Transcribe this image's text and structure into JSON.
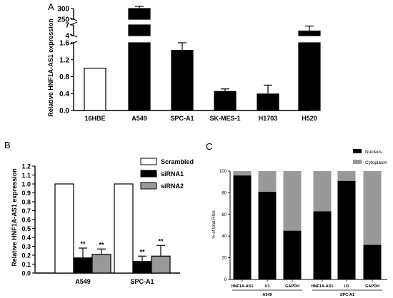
{
  "chart_data": [
    {
      "panel": "A",
      "type": "bar",
      "ylabel": "Relative HNF1A-AS1 expression",
      "categories": [
        "16HBE",
        "A549",
        "SPC-A1",
        "SK-MES-1",
        "H1703",
        "H520"
      ],
      "values": [
        1.0,
        300,
        1.42,
        0.45,
        0.39,
        5.3
      ],
      "errors": [
        0,
        30,
        0.18,
        0.06,
        0.21,
        1.4
      ],
      "bar_fill": [
        "white",
        "black",
        "black",
        "black",
        "black",
        "black"
      ],
      "broken_axis": true,
      "segments": [
        {
          "range": [
            0,
            1.6
          ],
          "ticks": [
            0.0,
            0.4,
            0.8,
            1.2,
            1.6
          ]
        },
        {
          "range": [
            4,
            7
          ],
          "ticks": [
            4,
            7
          ]
        },
        {
          "range": [
            250,
            300
          ],
          "ticks": [
            250,
            300
          ]
        }
      ]
    },
    {
      "panel": "B",
      "type": "bar",
      "ylabel": "Relative HNF1A-AS1 expression",
      "categories": [
        "A549",
        "SPC-A1"
      ],
      "series": [
        {
          "name": "Scrambled",
          "color": "#ffffff",
          "values": [
            1.0,
            1.0
          ],
          "errors": [
            0,
            0
          ],
          "annotation": [
            "",
            ""
          ]
        },
        {
          "name": "siRNA1",
          "color": "#000000",
          "values": [
            0.17,
            0.13
          ],
          "errors": [
            0.11,
            0.06
          ],
          "annotation": [
            "**",
            "**"
          ]
        },
        {
          "name": "siRNA2",
          "color": "#999999",
          "values": [
            0.21,
            0.19
          ],
          "errors": [
            0.06,
            0.12
          ],
          "annotation": [
            "**",
            "**"
          ]
        }
      ],
      "ylim": [
        0,
        1.2
      ],
      "yticks": [
        "0.0",
        "0.1",
        "0.2",
        "0.3",
        "0.4",
        "0.5",
        "0.6",
        "0.7",
        "0.8",
        "0.9",
        "1.0",
        "1.1",
        "1.2"
      ],
      "legend_position": "top-right"
    },
    {
      "panel": "C",
      "type": "bar",
      "stacked": true,
      "ylabel": "% of total RNA",
      "categories": [
        "HNF1A-AS1",
        "U1",
        "GAPDH",
        "HNF1A-AS1",
        "U1",
        "GAPDH"
      ],
      "groups": [
        {
          "label": "A549",
          "span": [
            0,
            2
          ]
        },
        {
          "label": "SPC-A1",
          "span": [
            3,
            5
          ]
        }
      ],
      "series": [
        {
          "name": "Nucleus",
          "color": "#000000",
          "values": [
            96,
            81,
            45,
            63,
            91,
            32
          ]
        },
        {
          "name": "Cytoplasm",
          "color": "#999999",
          "values": [
            4,
            19,
            55,
            37,
            9,
            68
          ]
        }
      ],
      "ylim": [
        0,
        100
      ],
      "yticks": [
        "0",
        "20",
        "40",
        "60",
        "80",
        "100"
      ],
      "legend_position": "top-right"
    }
  ]
}
